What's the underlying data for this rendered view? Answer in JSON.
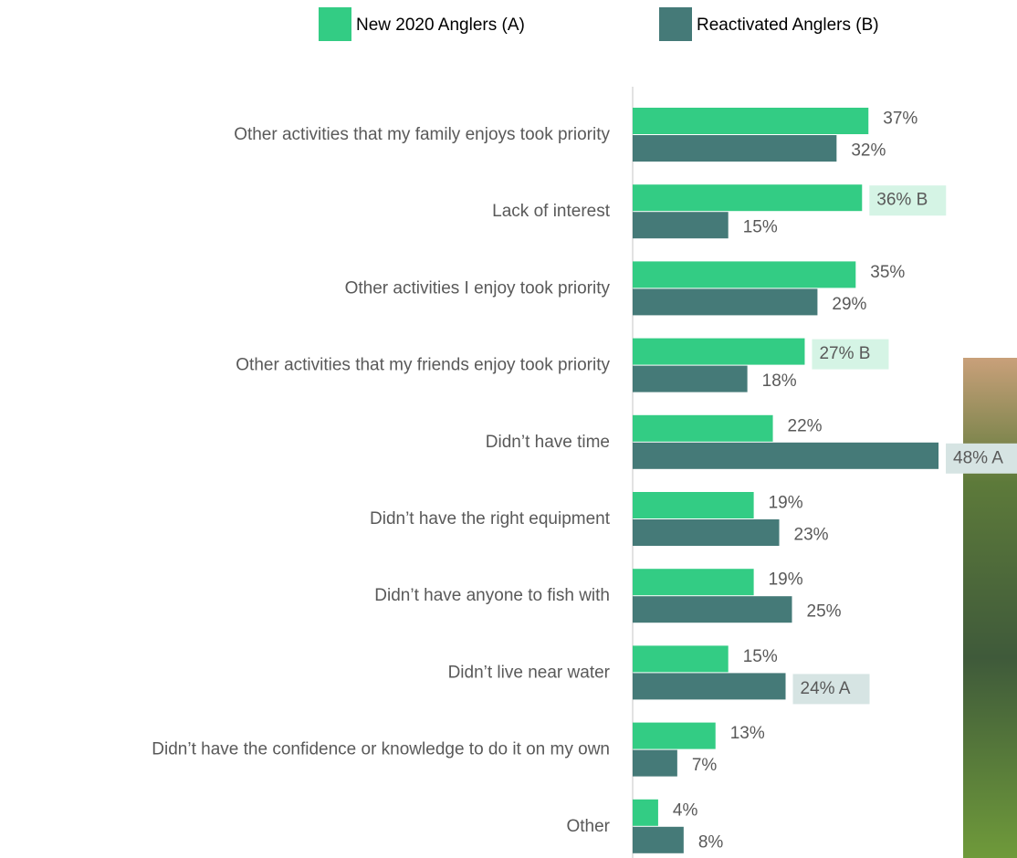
{
  "chart_data": {
    "type": "hbar",
    "categories": [
      "Other activities that my family enjoys took priority",
      "Lack of interest",
      "Other activities I enjoy took priority",
      "Other activities that my friends enjoy took priority",
      "Didn’t have time",
      "Didn’t have the right equipment",
      "Didn’t have anyone to fish with",
      "Didn’t live near water",
      "Didn’t have the confidence or knowledge to do it on my own",
      "Other"
    ],
    "series": [
      {
        "name": "New 2020 Anglers (A)",
        "color": "#33cc84",
        "highlight_color": "#d5f4e5",
        "values": [
          37,
          36,
          35,
          27,
          22,
          19,
          19,
          15,
          13,
          4
        ],
        "value_labels": [
          "37%",
          "36% B",
          "35%",
          "27% B",
          "22%",
          "19%",
          "19%",
          "15%",
          "13%",
          "4%"
        ]
      },
      {
        "name": "Reactivated Anglers (B)",
        "color": "#457a78",
        "highlight_color": "#d6e4e3",
        "values": [
          32,
          15,
          29,
          18,
          48,
          23,
          25,
          24,
          7,
          8
        ],
        "value_labels": [
          "32%",
          "15%",
          "29%",
          "18%",
          "48% A",
          "23%",
          "25%",
          "24% A",
          "7%",
          "8%"
        ]
      }
    ],
    "legend": "top"
  }
}
